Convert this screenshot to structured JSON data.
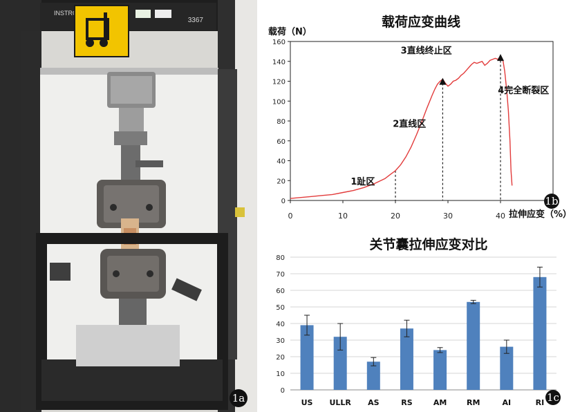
{
  "photo": {
    "brand": "INSTRON",
    "model": "3367",
    "label": "1a"
  },
  "chart_data": [
    {
      "type": "line",
      "title": "载荷应变曲线",
      "ylabel": "载荷（N）",
      "xlabel": "拉伸应变（%）",
      "xlim": [
        0,
        50
      ],
      "ylim": [
        0,
        160
      ],
      "xticks": [
        0,
        10,
        20,
        30,
        40
      ],
      "yticks": [
        0,
        20,
        40,
        60,
        80,
        100,
        120,
        140,
        160
      ],
      "line_color": "#e23b3b",
      "series": [
        {
          "x": [
            0,
            2,
            4,
            6,
            8,
            10,
            12,
            14,
            16,
            18,
            19,
            20,
            21,
            22,
            23,
            24,
            25,
            26,
            27,
            27.5,
            28,
            28.5,
            29,
            29.5,
            30,
            30.5,
            31,
            31.5,
            32,
            32.5,
            33,
            33.5,
            34,
            34.5,
            35,
            35.5,
            36,
            36.5,
            37,
            37.5,
            38,
            38.5,
            39,
            39.5,
            40,
            40.3,
            40.5,
            40.8,
            41,
            41.2,
            41.5,
            41.8,
            42,
            42.2
          ],
          "y": [
            2,
            3,
            4,
            5,
            6,
            8,
            10,
            13,
            17,
            22,
            26,
            30,
            36,
            44,
            54,
            66,
            79,
            93,
            106,
            112,
            117,
            120,
            122,
            118,
            115,
            117,
            120,
            121,
            123,
            126,
            128,
            131,
            134,
            137,
            139,
            138,
            139,
            140,
            136,
            138,
            141,
            142,
            143,
            142,
            145,
            143,
            140,
            130,
            120,
            110,
            90,
            60,
            30,
            15
          ]
        }
      ],
      "guides_x": [
        20,
        29,
        40
      ],
      "annotations": [
        {
          "text": "1趾区",
          "x": 11.5,
          "y": 16
        },
        {
          "text": "2直线区",
          "x": 19.5,
          "y": 74
        },
        {
          "text": "3直线终止区",
          "x": 21,
          "y": 148
        },
        {
          "text": "4完全断裂区",
          "x": 39.5,
          "y": 108
        }
      ],
      "arrows": [
        {
          "x": 29,
          "y": 122
        },
        {
          "x": 40,
          "y": 146
        }
      ],
      "label": "1b"
    },
    {
      "type": "bar",
      "title": "关节囊拉伸应变对比",
      "ylim": [
        0,
        80
      ],
      "yticks": [
        0,
        10,
        20,
        30,
        40,
        50,
        60,
        70,
        80
      ],
      "categories": [
        "US",
        "ULLR",
        "AS",
        "RS",
        "AM",
        "RM",
        "AI",
        "RI"
      ],
      "values": [
        39,
        32,
        17,
        37,
        24,
        53,
        26,
        68
      ],
      "errors": [
        6,
        8,
        2.5,
        5,
        1.5,
        1,
        4,
        6
      ],
      "bar_color": "#4f81bd",
      "grid": true,
      "label": "1c"
    }
  ]
}
